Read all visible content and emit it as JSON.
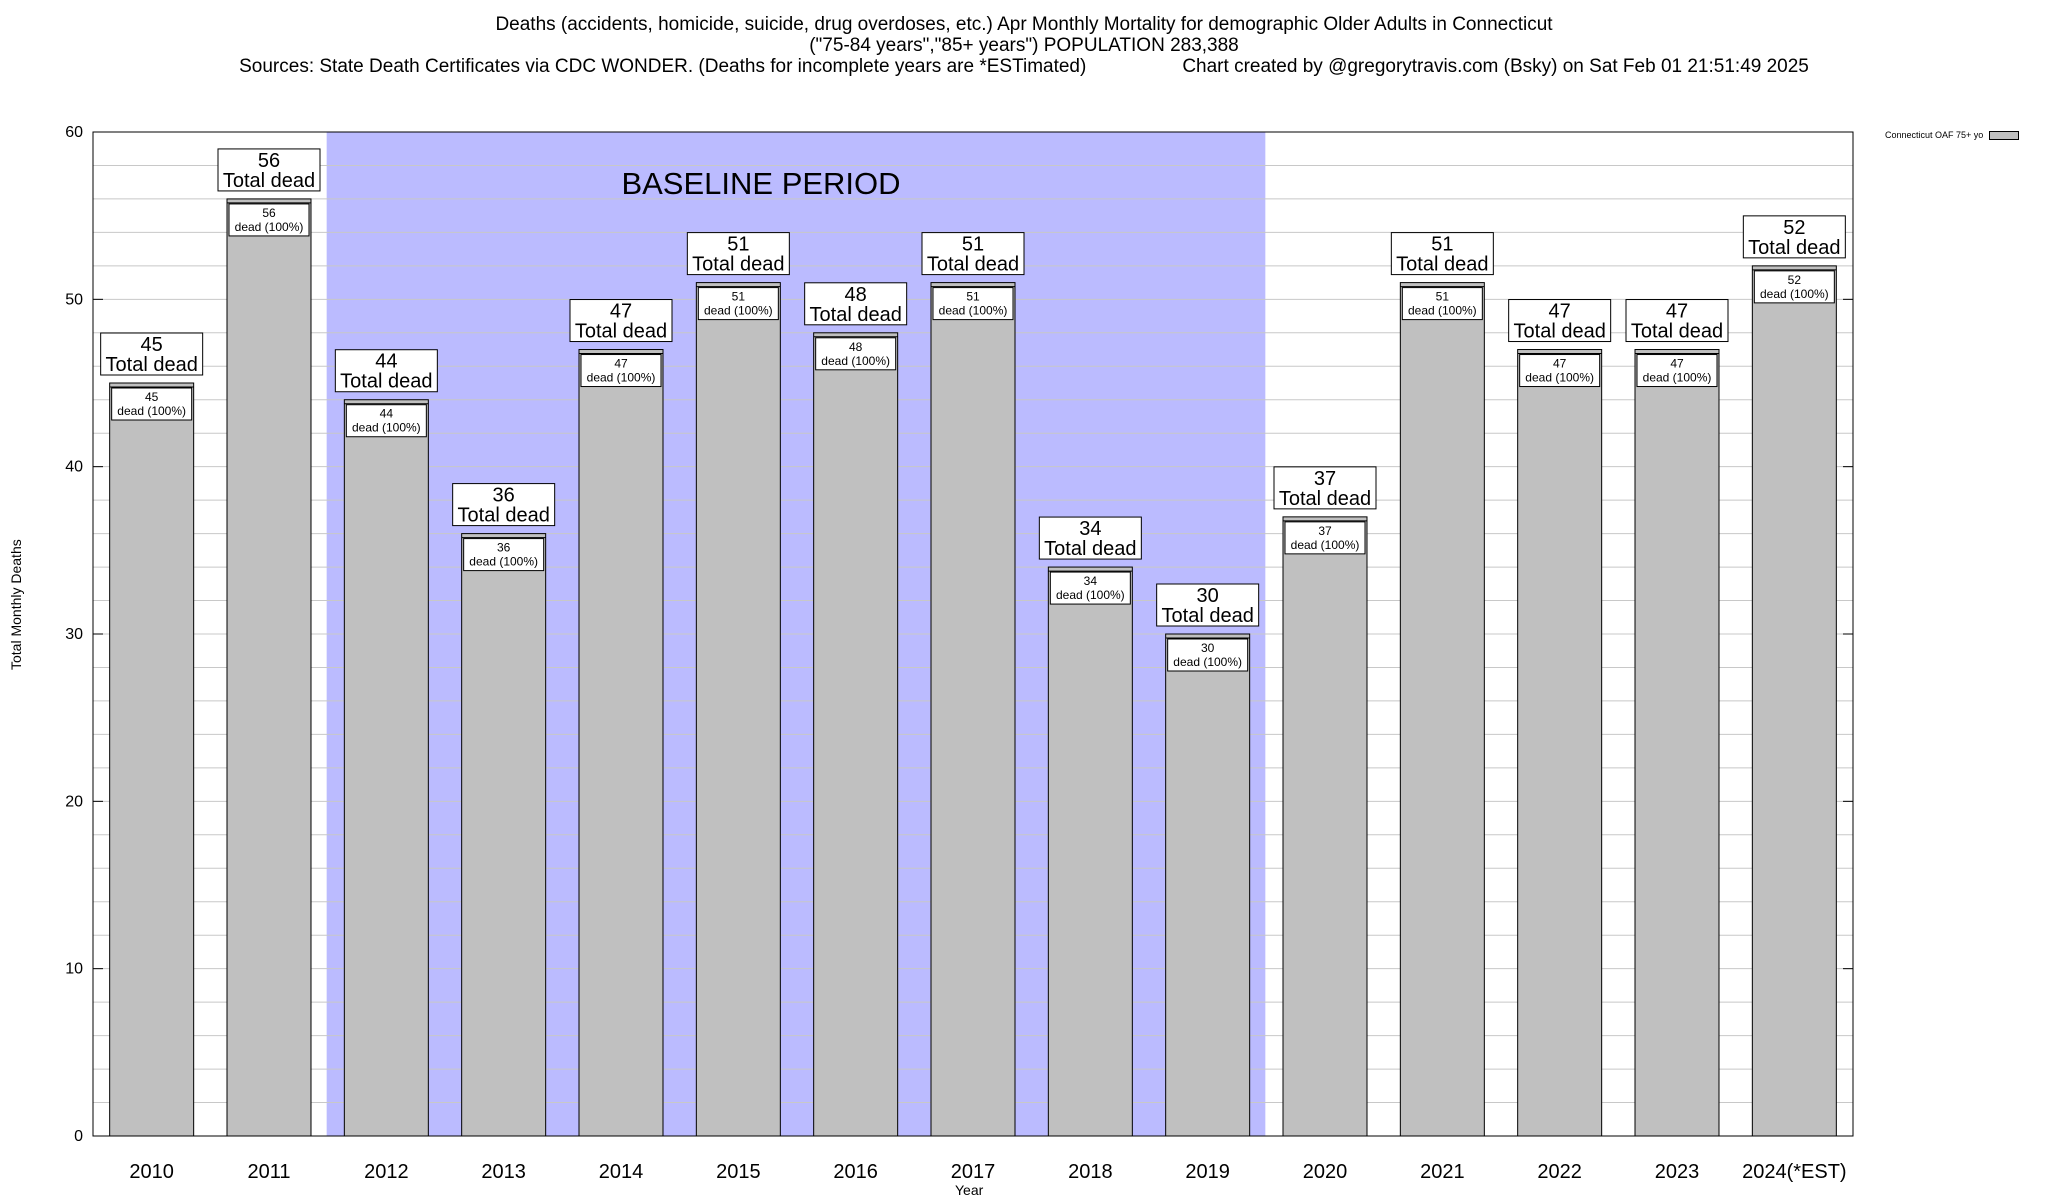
{
  "header": {
    "title_line1": "Deaths (accidents, homicide, suicide, drug overdoses, etc.) Apr Monthly Mortality for demographic Older Adults in Connecticut",
    "title_line2": "(\"75-84 years\",\"85+ years\") POPULATION 283,388",
    "sources": "Sources: State Death Certificates via CDC WONDER. (Deaths for incomplete years are *ESTimated)",
    "credit": "Chart created by @gregorytravis.com (Bsky) on Sat Feb 01 21:51:49 2025"
  },
  "chart_data": {
    "type": "bar",
    "xlabel": "Year",
    "ylabel": "Total Monthly Deaths",
    "ylim": [
      0,
      60
    ],
    "yticks": [
      0,
      10,
      20,
      30,
      40,
      50,
      60
    ],
    "grid": true,
    "legend_position": "top-right",
    "categories": [
      "2010",
      "2011",
      "2012",
      "2013",
      "2014",
      "2015",
      "2016",
      "2017",
      "2018",
      "2019",
      "2020",
      "2021",
      "2022",
      "2023",
      "2024(*EST)"
    ],
    "series": [
      {
        "name": "Connecticut OAF 75+ yo",
        "values": [
          45,
          56,
          44,
          36,
          47,
          51,
          48,
          51,
          34,
          30,
          37,
          51,
          47,
          47,
          52
        ],
        "color": "#c0c0c0"
      }
    ],
    "total_label_text": "Total dead",
    "inner_label_text": "dead (100%)",
    "baseline_region": {
      "label": "BASELINE PERIOD",
      "from_category": "2012",
      "to_category": "2019",
      "color": "#bbbbff"
    }
  }
}
